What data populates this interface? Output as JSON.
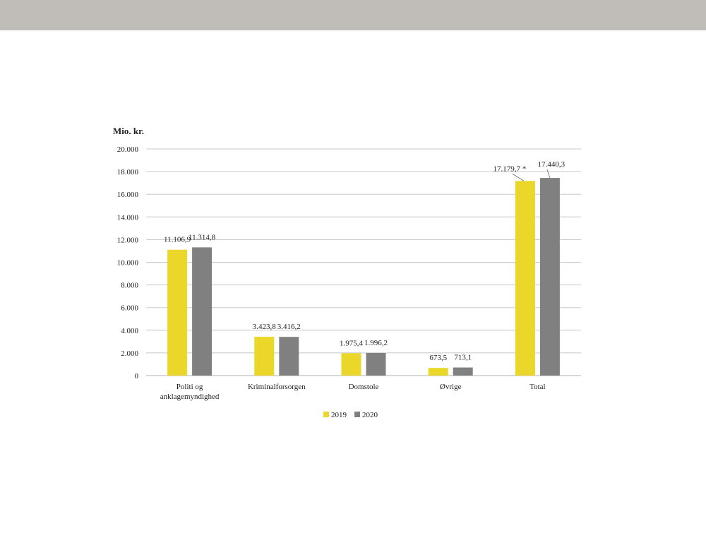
{
  "colors": {
    "header_bar": "#c0bdb8",
    "series_2019": "#ebd62a",
    "series_2020": "#808080",
    "gridline": "#c8c8c8",
    "axis": "#b0b0b0"
  },
  "chart_data": {
    "type": "bar",
    "title": "",
    "ylabel": "Mio. kr.",
    "xlabel": "",
    "ylim": [
      0,
      20000
    ],
    "yticks": [
      0,
      2000,
      4000,
      6000,
      8000,
      10000,
      12000,
      14000,
      16000,
      18000,
      20000
    ],
    "ytick_labels": [
      "0",
      "2.000",
      "4.000",
      "6.000",
      "8.000",
      "10.000",
      "12.000",
      "14.000",
      "16.000",
      "18.000",
      "20.000"
    ],
    "grid": true,
    "legend_position": "bottom",
    "categories": [
      [
        "Politi og",
        "anklagemyndighed"
      ],
      [
        "Kriminalforsorgen"
      ],
      [
        "Domstole"
      ],
      [
        "Øvrige"
      ],
      [
        "Total"
      ]
    ],
    "series": [
      {
        "name": "2019",
        "color": "#ebd62a",
        "values": [
          11106.9,
          3423.8,
          1975.4,
          673.5,
          17179.7
        ],
        "labels": [
          "11.106,9",
          "3.423,8",
          "1.975,4",
          "673,5",
          "17.179,7 *"
        ]
      },
      {
        "name": "2020",
        "color": "#808080",
        "values": [
          11314.8,
          3416.2,
          1996.2,
          713.1,
          17440.3
        ],
        "labels": [
          "11.314,8",
          "3.416,2",
          "1.996,2",
          "713,1",
          "17.440,3"
        ]
      }
    ]
  }
}
